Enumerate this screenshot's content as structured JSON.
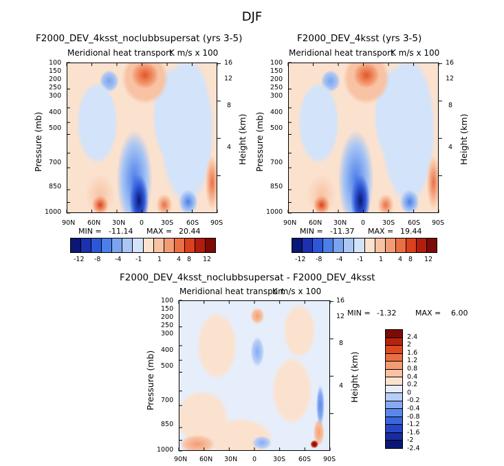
{
  "figure": {
    "title": "DJF"
  },
  "colors": {
    "diverging": [
      "#0a1775",
      "#1d31b0",
      "#2e57d8",
      "#4c7fe8",
      "#7aa4ef",
      "#a9c6f4",
      "#d2e3fa",
      "#fbe2cf",
      "#f8c3a4",
      "#f39c74",
      "#ea6f45",
      "#d9411f",
      "#b21d0d",
      "#7c0a05"
    ],
    "diff": [
      "#0a1775",
      "#1a2aa2",
      "#2646c6",
      "#3866de",
      "#5a88ea",
      "#86aaf1",
      "#b6cdf7",
      "#e6eefb",
      "#fbe2cf",
      "#f8c3a4",
      "#f39c74",
      "#ec6f42",
      "#dd4a1f",
      "#b8220c",
      "#7c0a05"
    ]
  },
  "chart_data": [
    {
      "type": "heatmap",
      "id": "left",
      "title": "F2000_DEV_4ksst_noclubbsupersat (yrs 3-5)",
      "subtitle": "Meridional heat transport",
      "units": "K m/s x 100",
      "xlabel": "",
      "ylabel": "Pressure (mb)",
      "y2label": "Height (km)",
      "xticks": [
        "90N",
        "60N",
        "30N",
        "0",
        "30S",
        "60S",
        "90S"
      ],
      "yticks": [
        "100",
        "150",
        "200",
        "250",
        "300",
        "400",
        "500",
        "700",
        "850",
        "1000"
      ],
      "y2ticks": [
        "16",
        "12",
        "8",
        "4"
      ],
      "min_label": "MIN =",
      "min": "-11.14",
      "max_label": "MAX =",
      "max": "20.44",
      "colorbar_labels": [
        "-12",
        "-8",
        "-4",
        "-1",
        "1",
        "4",
        "8",
        "12"
      ],
      "features": [
        {
          "lat": 10,
          "p": 180,
          "value": 14
        },
        {
          "lat": 2,
          "p": 980,
          "value": -11
        },
        {
          "lat": 50,
          "p": 950,
          "value": 5
        },
        {
          "lat": -15,
          "p": 960,
          "value": 6
        },
        {
          "lat": -50,
          "p": 960,
          "value": -5
        }
      ]
    },
    {
      "type": "heatmap",
      "id": "right",
      "title": "F2000_DEV_4ksst (yrs 3-5)",
      "subtitle": "Meridional heat transport",
      "units": "K m/s x 100",
      "xlabel": "",
      "ylabel": "Pressure (mb)",
      "y2label": "Height (km)",
      "xticks": [
        "90N",
        "60N",
        "30N",
        "0",
        "30S",
        "60S",
        "90S"
      ],
      "yticks": [
        "100",
        "150",
        "200",
        "250",
        "300",
        "400",
        "500",
        "700",
        "850",
        "1000"
      ],
      "y2ticks": [
        "16",
        "12",
        "8",
        "4"
      ],
      "min_label": "MIN =",
      "min": "-11.37",
      "max_label": "MAX =",
      "max": "19.44",
      "colorbar_labels": [
        "-12",
        "-8",
        "-4",
        "-1",
        "1",
        "4",
        "8",
        "12"
      ],
      "features": [
        {
          "lat": 10,
          "p": 180,
          "value": 13
        },
        {
          "lat": 2,
          "p": 980,
          "value": -11
        },
        {
          "lat": 50,
          "p": 950,
          "value": 5
        },
        {
          "lat": -15,
          "p": 960,
          "value": 6
        },
        {
          "lat": -50,
          "p": 960,
          "value": -5
        }
      ]
    },
    {
      "type": "heatmap",
      "id": "diff",
      "title": "F2000_DEV_4ksst_noclubbsupersat - F2000_DEV_4ksst",
      "subtitle": "Meridional heat transport",
      "units": "K m/s x 100",
      "xlabel": "",
      "ylabel": "Pressure (mb)",
      "y2label": "Height (km)",
      "xticks": [
        "90N",
        "60N",
        "30N",
        "0",
        "30S",
        "60S",
        "90S"
      ],
      "yticks": [
        "100",
        "150",
        "200",
        "250",
        "300",
        "400",
        "500",
        "700",
        "850",
        "1000"
      ],
      "y2ticks": [
        "16",
        "12",
        "8",
        "4"
      ],
      "min_label": "MIN =",
      "min": "-1.32",
      "max_label": "MAX =",
      "max": "6.00",
      "colorbar_labels": [
        "2.4",
        "2",
        "1.6",
        "1.2",
        "0.8",
        "0.4",
        "0.2",
        "0",
        "-0.2",
        "-0.4",
        "-0.8",
        "-1.2",
        "-1.6",
        "-2",
        "-2.4"
      ],
      "features": [
        {
          "lat": 4,
          "p": 150,
          "value": 0.6
        },
        {
          "lat": -4,
          "p": 1000,
          "value": -0.6
        },
        {
          "lat": -75,
          "p": 720,
          "value": -0.8
        },
        {
          "lat": -70,
          "p": 990,
          "value": 2.4
        }
      ]
    }
  ]
}
